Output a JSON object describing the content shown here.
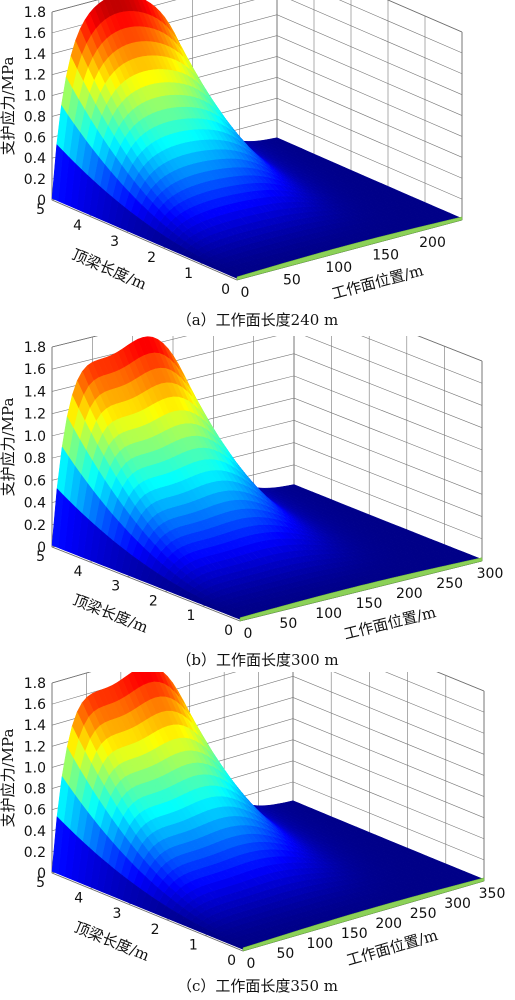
{
  "chart_data": [
    {
      "type": "surface",
      "caption": "（a）工作面长度240 m",
      "zlabel": "支护应力/MPa",
      "xlabel": "工作面位置/m",
      "ylabel": "顶梁长度/m",
      "x_ticks": [
        "0",
        "50",
        "100",
        "150",
        "200"
      ],
      "y_ticks": [
        "0",
        "1",
        "2",
        "3",
        "4",
        "5"
      ],
      "z_ticks": [
        "0",
        "0.2",
        "0.4",
        "0.6",
        "0.8",
        "1.0",
        "1.2",
        "1.4",
        "1.6",
        "1.8"
      ],
      "xlim": [
        0,
        240
      ],
      "ylim": [
        0,
        5
      ],
      "zlim": [
        0,
        1.8
      ],
      "peak_shape": "single",
      "peak_value": 1.85,
      "grid": true,
      "colormap": "jet"
    },
    {
      "type": "surface",
      "caption": "（b）工作面长度300 m",
      "zlabel": "支护应力/MPa",
      "xlabel": "工作面位置/m",
      "ylabel": "顶梁长度/m",
      "x_ticks": [
        "0",
        "50",
        "100",
        "150",
        "200",
        "250",
        "300"
      ],
      "y_ticks": [
        "0",
        "1",
        "2",
        "3",
        "4",
        "5"
      ],
      "z_ticks": [
        "0",
        "0.2",
        "0.4",
        "0.6",
        "0.8",
        "1.0",
        "1.2",
        "1.4",
        "1.6",
        "1.8"
      ],
      "xlim": [
        0,
        300
      ],
      "ylim": [
        0,
        5
      ],
      "zlim": [
        0,
        1.8
      ],
      "peak_shape": "double",
      "peak_value": 1.85,
      "grid": true,
      "colormap": "jet"
    },
    {
      "type": "surface",
      "caption": "（c）工作面长度350 m",
      "zlabel": "支护应力/MPa",
      "xlabel": "工作面位置/m",
      "ylabel": "顶梁长度/m",
      "x_ticks": [
        "0",
        "50",
        "100",
        "150",
        "200",
        "250",
        "300",
        "350"
      ],
      "y_ticks": [
        "0",
        "1",
        "2",
        "3",
        "4",
        "5"
      ],
      "z_ticks": [
        "0",
        "0.2",
        "0.4",
        "0.6",
        "0.8",
        "1.0",
        "1.2",
        "1.4",
        "1.6",
        "1.8"
      ],
      "xlim": [
        0,
        350
      ],
      "ylim": [
        0,
        5
      ],
      "zlim": [
        0,
        1.8
      ],
      "peak_shape": "double",
      "peak_value": 1.87,
      "grid": true,
      "colormap": "jet"
    }
  ]
}
